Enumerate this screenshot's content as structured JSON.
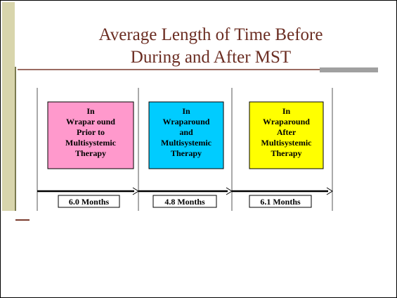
{
  "title": {
    "lines": [
      "Average Length of Time Before",
      "During and After MST"
    ]
  },
  "phases": [
    {
      "lines": [
        "In",
        "Wrapar ound",
        "Prior to",
        "Multisystemic",
        "Therapy"
      ],
      "duration": "6.0 Months"
    },
    {
      "lines": [
        "In",
        "Wraparound",
        "and",
        "Multisystemic",
        "Therapy"
      ],
      "duration": "4.8 Months"
    },
    {
      "lines": [
        "In",
        "Wraparound",
        "After",
        "Multisystemic",
        "Therapy"
      ],
      "duration": "6.1 Months"
    }
  ]
}
